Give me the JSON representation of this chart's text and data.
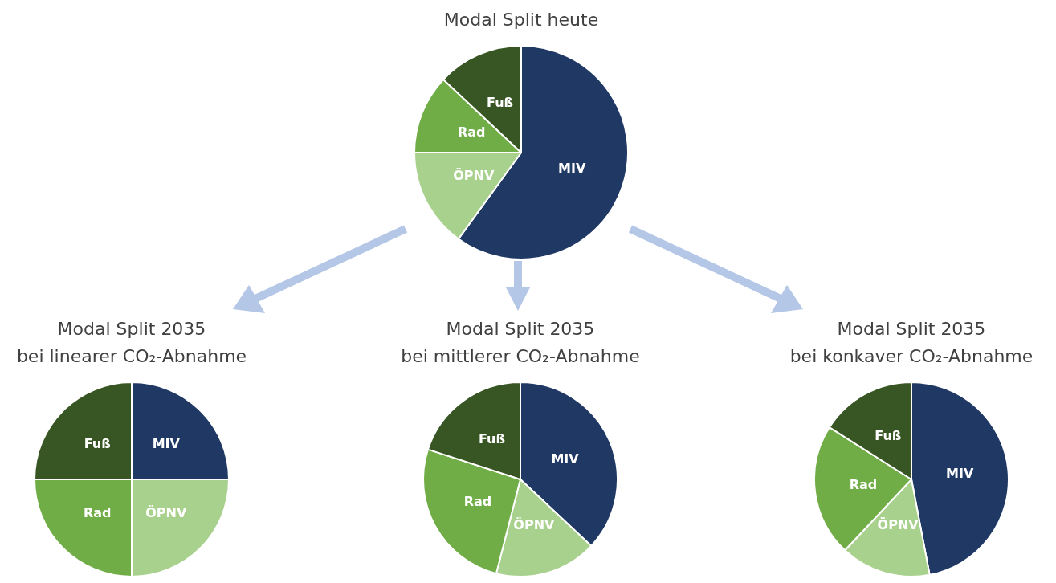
{
  "chart_data": [
    {
      "type": "pie",
      "title": "Modal Split heute",
      "categories": [
        "MIV",
        "ÖPNV",
        "Rad",
        "Fuß"
      ],
      "values": [
        60,
        15,
        12,
        13
      ],
      "colors": [
        "#1f3864",
        "#a9d18e",
        "#70ad47",
        "#375623"
      ]
    },
    {
      "type": "pie",
      "title": "Modal Split 2035",
      "subtitle": "bei linearer CO₂-Abnahme",
      "categories": [
        "MIV",
        "ÖPNV",
        "Rad",
        "Fuß"
      ],
      "values": [
        25,
        25,
        25,
        25
      ],
      "colors": [
        "#1f3864",
        "#a9d18e",
        "#70ad47",
        "#375623"
      ]
    },
    {
      "type": "pie",
      "title": "Modal Split 2035",
      "subtitle": "bei mittlerer CO₂-Abnahme",
      "categories": [
        "MIV",
        "ÖPNV",
        "Rad",
        "Fuß"
      ],
      "values": [
        37,
        17,
        26,
        20
      ],
      "colors": [
        "#1f3864",
        "#a9d18e",
        "#70ad47",
        "#375623"
      ]
    },
    {
      "type": "pie",
      "title": "Modal Split 2035",
      "subtitle": "bei konkaver CO₂-Abnahme",
      "categories": [
        "MIV",
        "ÖPNV",
        "Rad",
        "Fuß"
      ],
      "values": [
        47,
        15,
        22,
        16
      ],
      "colors": [
        "#1f3864",
        "#a9d18e",
        "#70ad47",
        "#375623"
      ]
    }
  ]
}
